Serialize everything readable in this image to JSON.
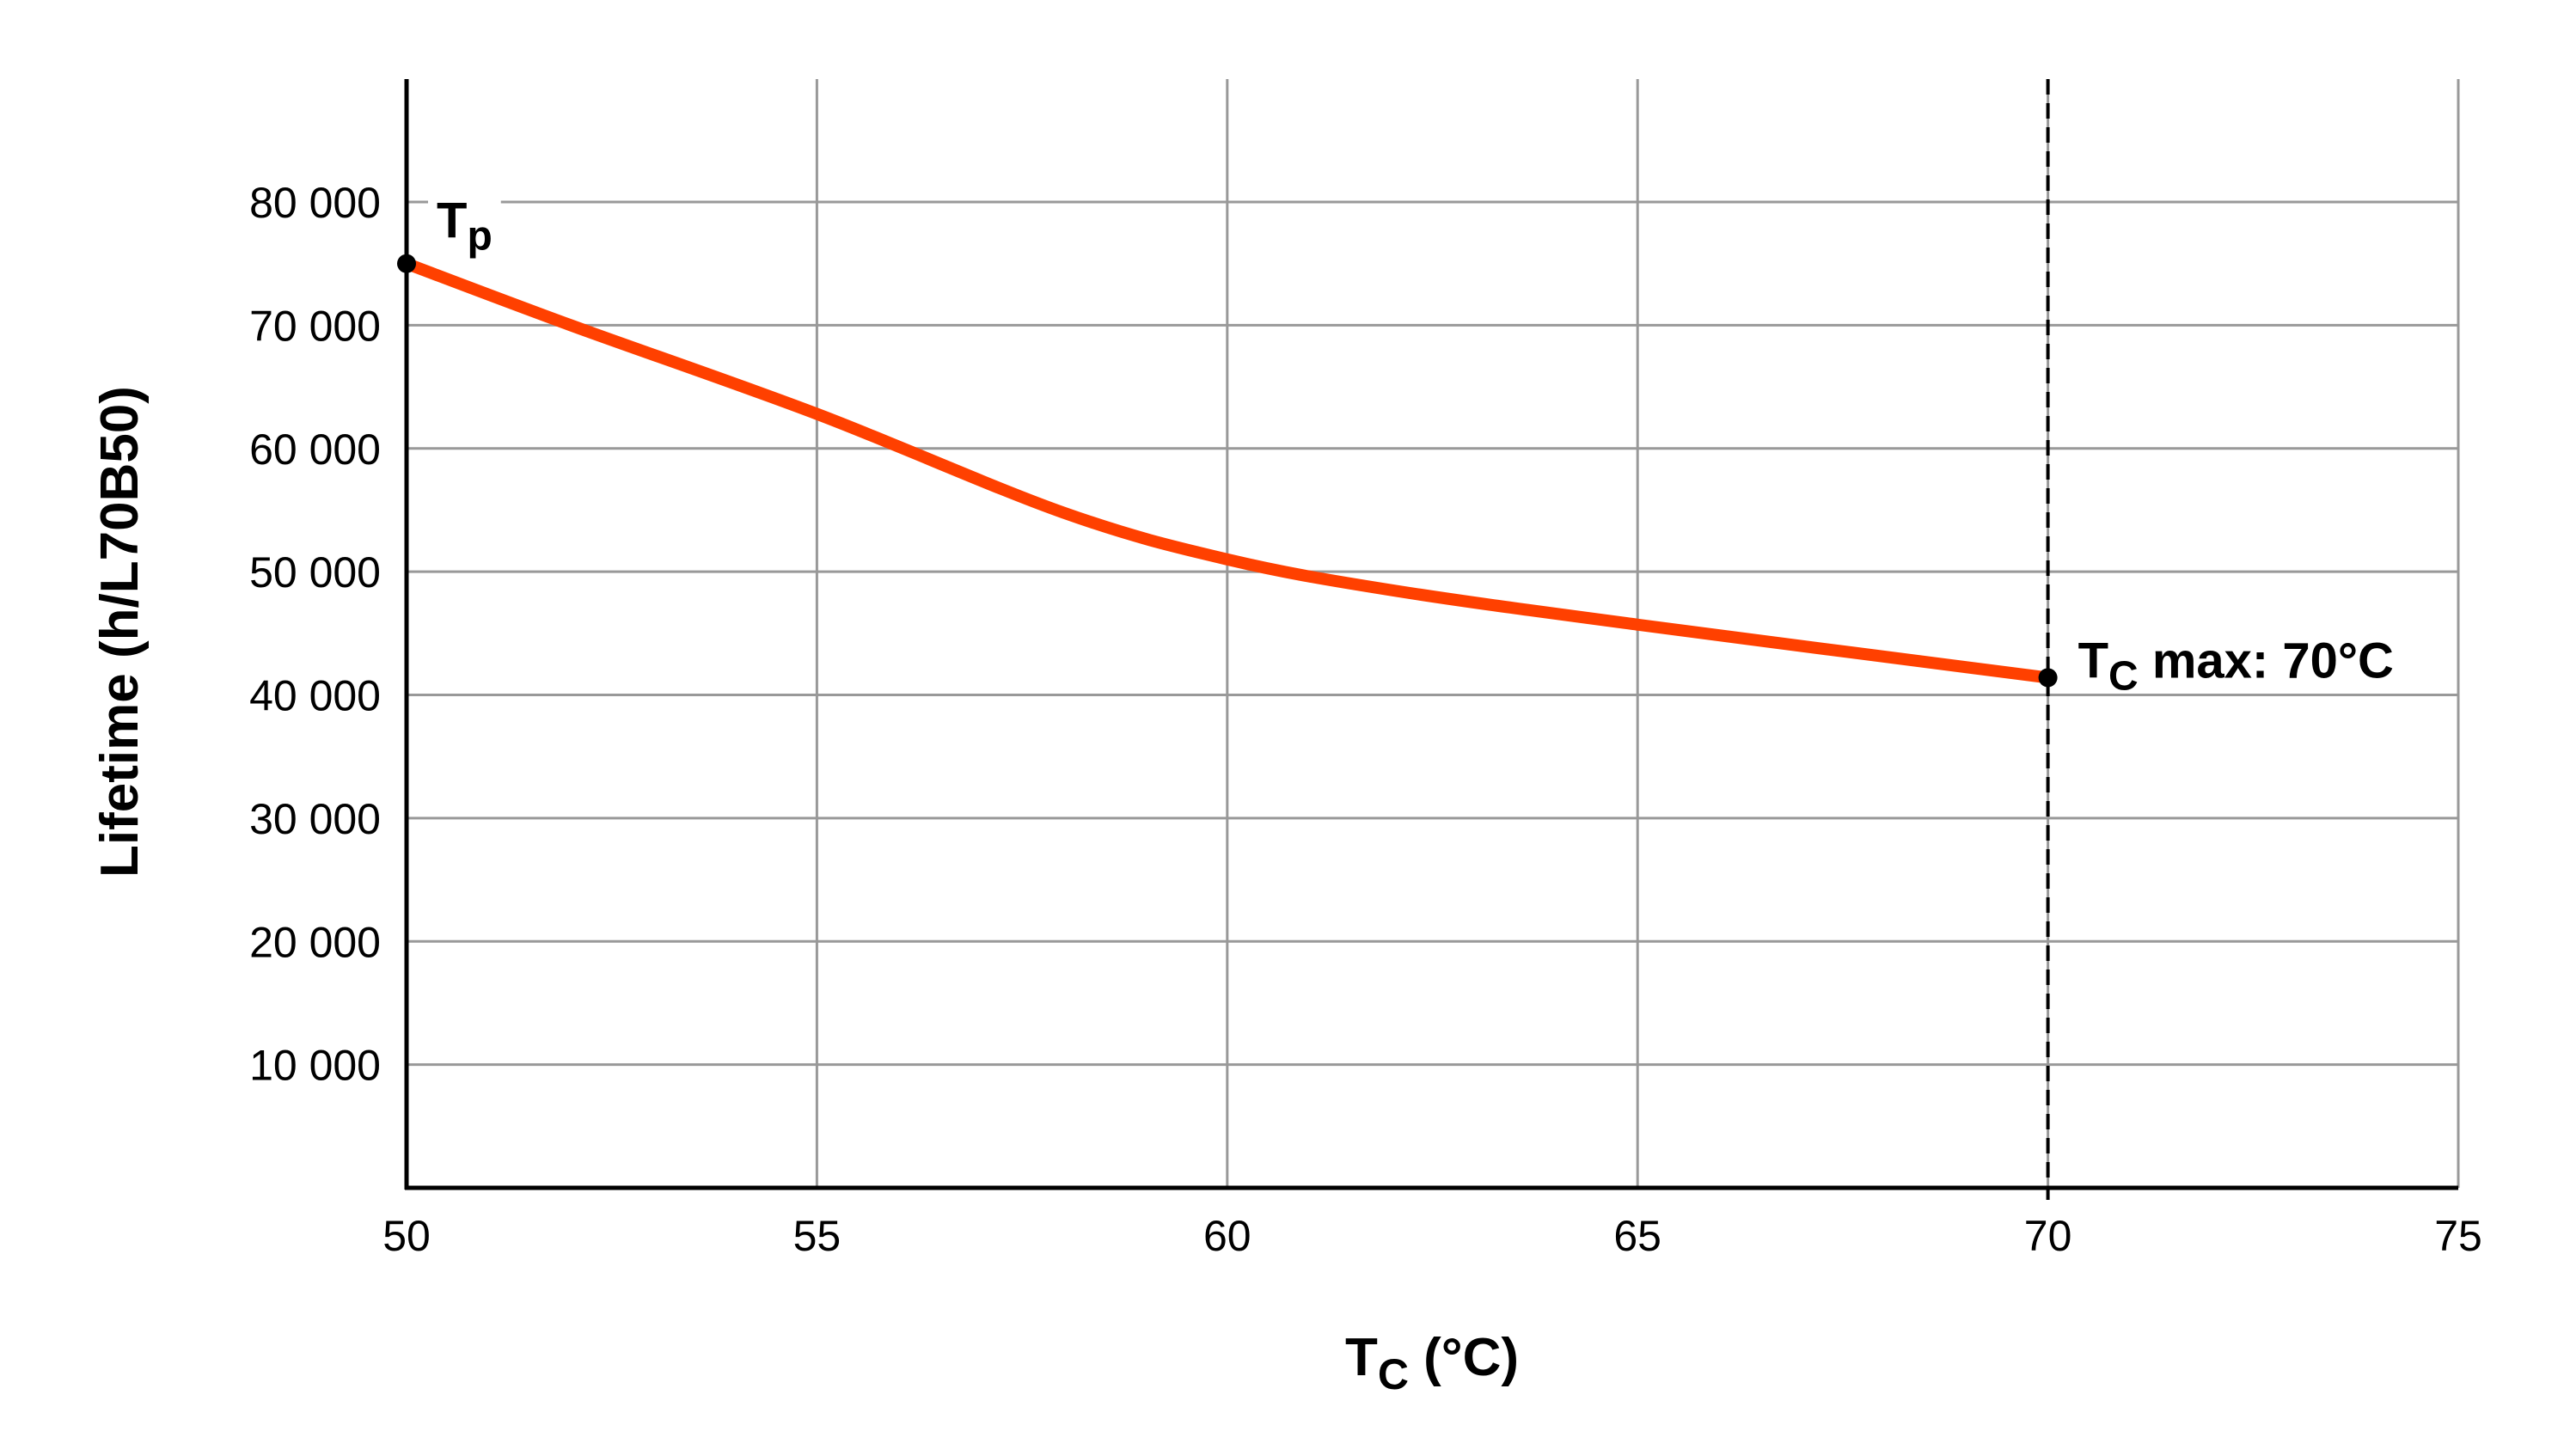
{
  "chart_data": {
    "type": "line",
    "title": "",
    "xlabel": {
      "main": "T",
      "sub": "C",
      "rest": " (°C)"
    },
    "ylabel": "Lifetime (h/L70B50)",
    "xlim": [
      50,
      75
    ],
    "ylim": [
      0,
      90000
    ],
    "x_ticks": [
      50,
      55,
      60,
      65,
      70,
      75
    ],
    "y_ticks": [
      10000,
      20000,
      30000,
      40000,
      50000,
      60000,
      70000,
      80000
    ],
    "y_tick_labels": [
      "10 000",
      "20 000",
      "30 000",
      "40 000",
      "50 000",
      "60 000",
      "70 000",
      "80 000"
    ],
    "grid": true,
    "series": [
      {
        "color": "#ff4000",
        "x": [
          50,
          52,
          55,
          58,
          60,
          62,
          65,
          70
        ],
        "y": [
          75000,
          70000,
          62800,
          54800,
          51000,
          48500,
          45700,
          41400
        ]
      }
    ],
    "annotations": [
      {
        "x": 50,
        "y": 75000,
        "main": "T",
        "sub": "p",
        "rest": ""
      },
      {
        "x": 70,
        "y": 41400,
        "main": "T",
        "sub": "C",
        "rest": " max: 70°C"
      }
    ],
    "reference_line": {
      "x": 70,
      "style": "dashed"
    }
  }
}
